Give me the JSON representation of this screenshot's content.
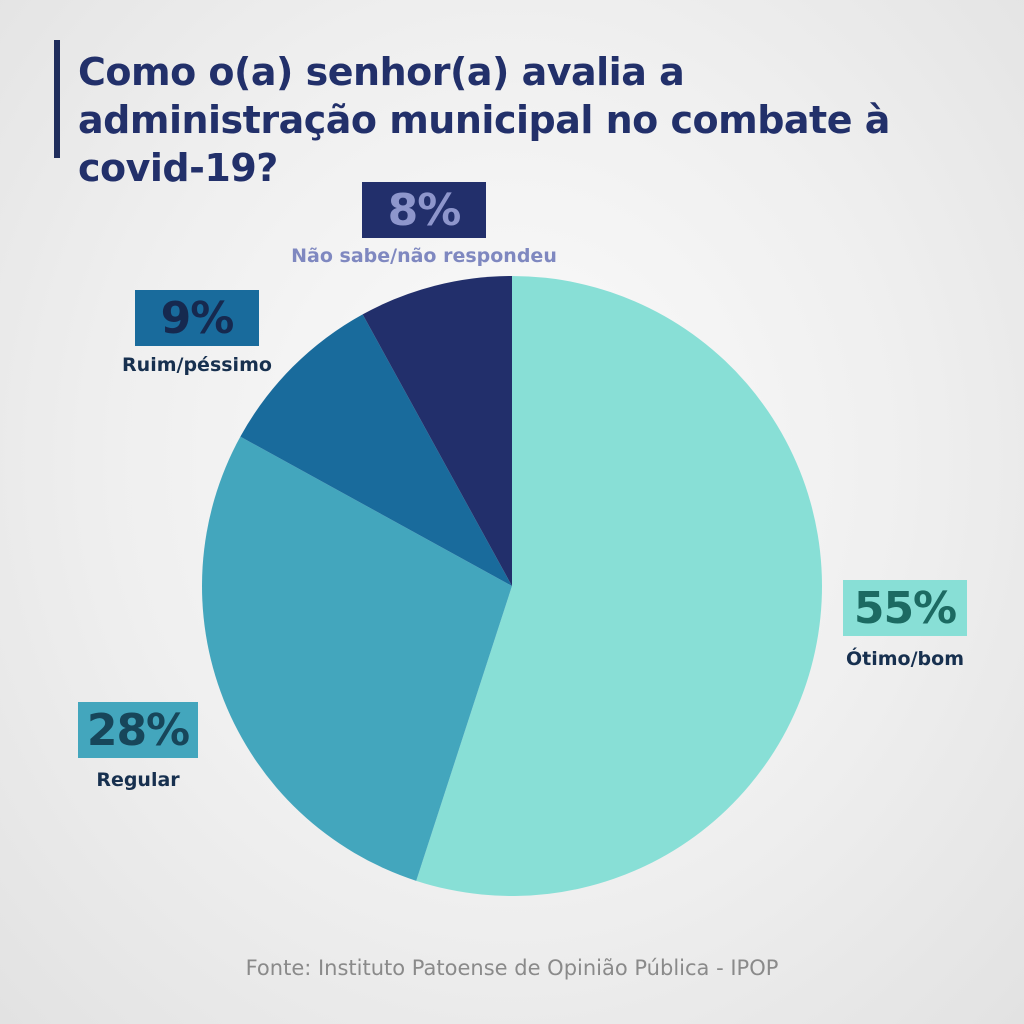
{
  "title": "Como o(a) senhor(a) avalia a administração municipal no combate à covid-19?",
  "source": "Fonte: Instituto Patoense de Opinião Pública - IPOP",
  "chart_data": {
    "type": "pie",
    "title": "Como o(a) senhor(a) avalia a administração municipal no combate à covid-19?",
    "unit": "%",
    "slices": [
      {
        "label": "Ótimo/bom",
        "value": 55,
        "value_label": "55%",
        "color": "#88dfd6",
        "label_color": "#1c6a62",
        "badge_color": "#88dfd6"
      },
      {
        "label": "Regular",
        "value": 28,
        "value_label": "28%",
        "color": "#43a6bd",
        "label_color": "#17465a",
        "badge_color": "#43a6bd"
      },
      {
        "label": "Ruim/péssimo",
        "value": 9,
        "value_label": "9%",
        "color": "#196b9c",
        "label_color": "#17304f",
        "badge_color": "#196b9c"
      },
      {
        "label": "Não sabe/não respondeu",
        "value": 8,
        "value_label": "8%",
        "color": "#222f6b",
        "label_color": "#7f88c0",
        "badge_color": "#222f6b"
      }
    ]
  }
}
